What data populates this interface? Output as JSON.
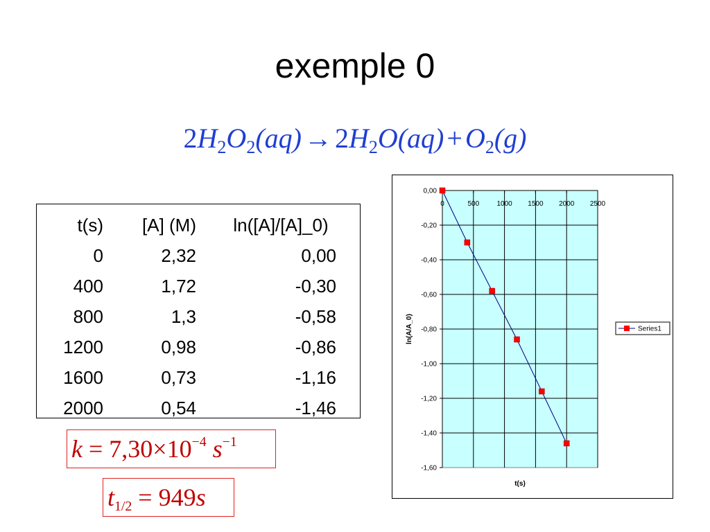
{
  "slide": {
    "title": "exemple 0",
    "equation": {
      "lhs_coef": "2",
      "h": "H",
      "sub2": "2",
      "o": "O",
      "aq": "(aq)",
      "arrow": "→",
      "rhs_coef": "2",
      "plus": "+",
      "g": "(g)"
    }
  },
  "table": {
    "headers": [
      "t(s)",
      "[A] (M)",
      "ln([A]/[A]_0)"
    ],
    "rows": [
      [
        "0",
        "2,32",
        "0,00"
      ],
      [
        "400",
        "1,72",
        "-0,30"
      ],
      [
        "800",
        "1,3",
        "-0,58"
      ],
      [
        "1200",
        "0,98",
        "-0,86"
      ],
      [
        "1600",
        "0,73",
        "-1,16"
      ],
      [
        "2000",
        "0,54",
        "-1,46"
      ]
    ]
  },
  "formulas": {
    "k": {
      "symbol": "k",
      "eq": "=",
      "value": "7,30",
      "times": "×",
      "base": "10",
      "exp": "−4",
      "unit": "s",
      "unit_exp": "−1"
    },
    "half_life": {
      "symbol": "t",
      "sub": "1/2",
      "eq": "=",
      "value": "949",
      "unit": "s"
    }
  },
  "colors": {
    "equation": "#1f3fd0",
    "formula": "#c00000",
    "formula_border": "#e02020",
    "plot_area": "#c8ffff",
    "series_line": "#000080",
    "series_marker": "#ff0000"
  },
  "chart_data": {
    "type": "scatter",
    "title": "",
    "xlabel": "t(s)",
    "ylabel": "ln(A/A_0)",
    "xlim": [
      0,
      2500
    ],
    "ylim": [
      -1.6,
      0
    ],
    "x_ticks": [
      "0",
      "500",
      "1000",
      "1500",
      "2000",
      "2500"
    ],
    "y_ticks": [
      "0,00",
      "-0,20",
      "-0,40",
      "-0,60",
      "-0,80",
      "-1,00",
      "-1,20",
      "-1,40",
      "-1,60"
    ],
    "grid": true,
    "legend": "right",
    "series": [
      {
        "name": "Series1",
        "x": [
          0,
          400,
          800,
          1200,
          1600,
          2000
        ],
        "y": [
          0.0,
          -0.3,
          -0.58,
          -0.86,
          -1.16,
          -1.46
        ]
      }
    ]
  }
}
